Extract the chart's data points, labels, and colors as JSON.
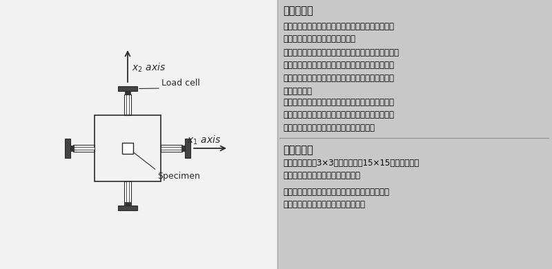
{
  "bg_color": "#c8c8c8",
  "left_panel_bg": "#f2f2f2",
  "right_panel_bg": "#c8c8c8",
  "title1": "应用领域：",
  "title2": "样品要求：",
  "para1": "可用于生物组织、医疗器械、纺织品、橡胶材料、塑\n料薄膜、金属、复合材料的研究。",
  "para2": "在生物医学研究领域，主要用于人工皮肤、人造血管、\n人心脏瓣膜、人工角膜、人工巩膜、人工肌腱、人工\n韧带、人工软组织、人工椎间盘、人工纤维环等生物\n材料的测试。",
  "para3": "可用于橡胶、塑料、纺织品、布匹、纸张、薄膜等高\n分子材料的各向同性或者各向异性研究和测试，用于\n测量膜材强度、弹性模量等多种力学性质。",
  "para4": "测试样本不小于3×3毫米，不大于15×15毫米，可以进\n行多模块周期的、拉伸和松弛测试。",
  "para5": "产品提供控温浴槽，配备培养基加热腔和温度传感\n器，以保持标本处于合适的生理条件。",
  "load_cell_label": "Load cell",
  "specimen_label": "Specimen",
  "text_color": "#000000"
}
